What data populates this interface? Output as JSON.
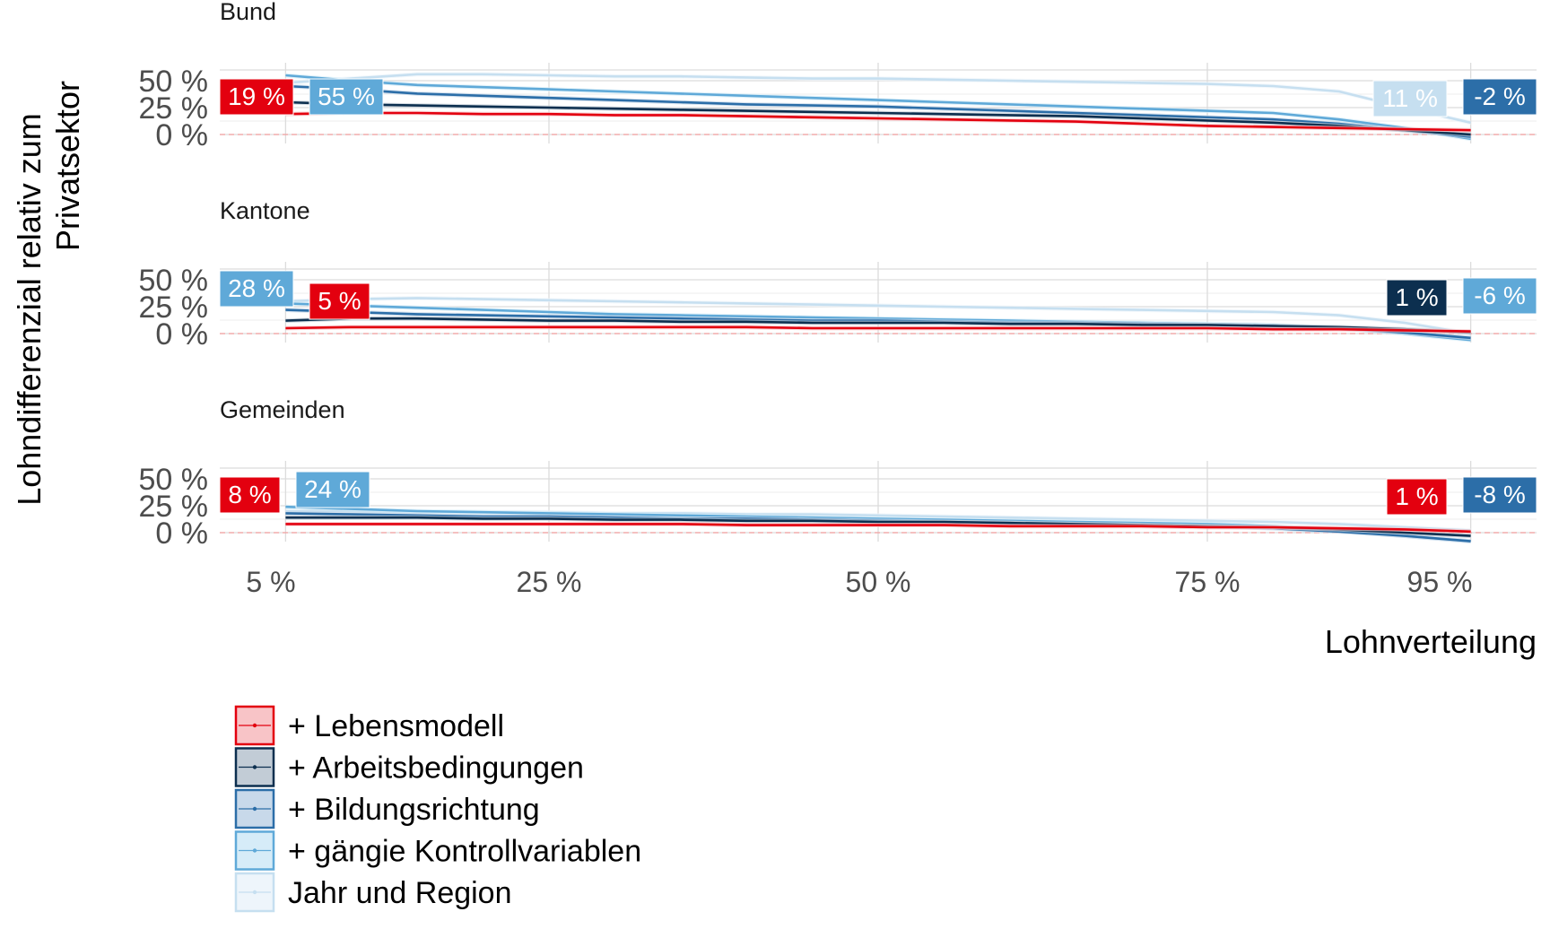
{
  "chart_data": {
    "type": "line",
    "ylabel": "Lohndifferenzial relativ zum Privatsektor",
    "xlabel": "Lohnverteilung",
    "x_ticks": [
      5,
      25,
      50,
      75,
      95
    ],
    "x_tick_labels": [
      "5 %",
      "25 %",
      "50 %",
      "75 %",
      "95 %"
    ],
    "y_ticks": [
      0,
      25,
      50
    ],
    "y_tick_labels": [
      "0 %",
      "25 %",
      "50 %"
    ],
    "ylim": [
      0,
      60
    ],
    "grid": true,
    "legend_position": "bottom",
    "series_styles": [
      {
        "name": "+ Lebensmodell",
        "color": "#e3000f",
        "fill": "#f8c4c7"
      },
      {
        "name": "+ Arbeitsbedingungen",
        "color": "#0c2f4f",
        "fill": "#c2ccd6"
      },
      {
        "name": "+ Bildungsrichtung",
        "color": "#2c6ea8",
        "fill": "#c8d9ea"
      },
      {
        "name": "+ gängie Kontrollvariablen",
        "color": "#5fa9d8",
        "fill": "#d6ecf8"
      },
      {
        "name": "Jahr und Region",
        "color": "#c6dff0",
        "fill": "#eef5fb"
      }
    ],
    "panels": [
      {
        "title": "Bund",
        "x": [
          5,
          10,
          15,
          20,
          25,
          30,
          35,
          40,
          45,
          50,
          55,
          60,
          65,
          70,
          75,
          80,
          85,
          90,
          95
        ],
        "series": [
          {
            "name": "Jahr und Region",
            "values": [
              48,
              52,
              56,
              56,
              55,
              54,
              54,
              53,
              52,
              52,
              51,
              50,
              49,
              48,
              47,
              45,
              40,
              25,
              11
            ]
          },
          {
            "name": "+ gängie Kontrollvariablen",
            "values": [
              55,
              50,
              46,
              44,
              42,
              40,
              38,
              36,
              34,
              32,
              30,
              28,
              26,
              24,
              22,
              20,
              14,
              6,
              -4
            ]
          },
          {
            "name": "+ Bildungsrichtung",
            "values": [
              45,
              42,
              38,
              36,
              34,
              32,
              30,
              28,
              27,
              26,
              24,
              22,
              20,
              18,
              16,
              14,
              10,
              4,
              -2
            ]
          },
          {
            "name": "+ Arbeitsbedingungen",
            "values": [
              30,
              28,
              27,
              26,
              25,
              24,
              23,
              22,
              21,
              20,
              19,
              18,
              17,
              15,
              13,
              11,
              8,
              4,
              0
            ]
          },
          {
            "name": "+ Lebensmodell",
            "values": [
              19,
              20,
              20,
              19,
              19,
              18,
              18,
              17,
              16,
              15,
              14,
              13,
              12,
              10,
              8,
              7,
              6,
              5,
              4
            ]
          }
        ],
        "labels": {
          "left_primary": {
            "text": "19 %",
            "series": "+ Lebensmodell"
          },
          "left_secondary": {
            "text": "55 %",
            "series": "+ gängie Kontrollvariablen"
          },
          "right_primary": {
            "text": "11 %",
            "series": "Jahr und Region"
          },
          "right_secondary": {
            "text": "-2 %",
            "series": "+ Bildungsrichtung"
          }
        }
      },
      {
        "title": "Kantone",
        "x": [
          5,
          10,
          15,
          20,
          25,
          30,
          35,
          40,
          45,
          50,
          55,
          60,
          65,
          70,
          75,
          80,
          85,
          90,
          95
        ],
        "series": [
          {
            "name": "Jahr und Region",
            "values": [
              30,
              32,
              33,
              32,
              31,
              30,
              29,
              28,
              27,
              26,
              25,
              24,
              23,
              22,
              21,
              20,
              17,
              10,
              0
            ]
          },
          {
            "name": "+ gängie Kontrollvariablen",
            "values": [
              28,
              26,
              24,
              22,
              20,
              18,
              17,
              16,
              15,
              14,
              13,
              12,
              11,
              10,
              9,
              8,
              5,
              0,
              -6
            ]
          },
          {
            "name": "+ Bildungsrichtung",
            "values": [
              22,
              20,
              18,
              17,
              16,
              15,
              14,
              13,
              12,
              12,
              11,
              10,
              10,
              9,
              8,
              7,
              5,
              1,
              -4
            ]
          },
          {
            "name": "+ Arbeitsbedingungen",
            "values": [
              12,
              14,
              14,
              13,
              12,
              12,
              11,
              11,
              10,
              10,
              10,
              9,
              9,
              8,
              8,
              7,
              6,
              4,
              1
            ]
          },
          {
            "name": "+ Lebensmodell",
            "values": [
              5,
              6,
              6,
              6,
              6,
              6,
              6,
              6,
              5,
              5,
              5,
              5,
              5,
              5,
              5,
              4,
              4,
              3,
              2
            ]
          }
        ],
        "labels": {
          "left_primary": {
            "text": "28 %",
            "series": "+ gängie Kontrollvariablen"
          },
          "left_secondary": {
            "text": "5 %",
            "series": "+ Lebensmodell"
          },
          "right_primary": {
            "text": "1 %",
            "series": "+ Arbeitsbedingungen"
          },
          "right_secondary": {
            "text": "-6 %",
            "series": "+ gängie Kontrollvariablen"
          }
        }
      },
      {
        "title": "Gemeinden",
        "x": [
          5,
          10,
          15,
          20,
          25,
          30,
          35,
          40,
          45,
          50,
          55,
          60,
          65,
          70,
          75,
          80,
          85,
          90,
          95
        ],
        "series": [
          {
            "name": "Jahr und Region",
            "values": [
              20,
              20,
              19,
              19,
              19,
              18,
              18,
              17,
              17,
              16,
              15,
              14,
              13,
              12,
              11,
              10,
              8,
              5,
              2
            ]
          },
          {
            "name": "+ gängie Kontrollvariablen",
            "values": [
              24,
              22,
              20,
              19,
              18,
              17,
              16,
              15,
              14,
              13,
              12,
              11,
              10,
              9,
              8,
              6,
              2,
              -3,
              -8
            ]
          },
          {
            "name": "+ Bildungsrichtung",
            "values": [
              18,
              17,
              16,
              15,
              15,
              14,
              13,
              13,
              12,
              11,
              10,
              9,
              8,
              7,
              6,
              4,
              1,
              -3,
              -8
            ]
          },
          {
            "name": "+ Arbeitsbedingungen",
            "values": [
              14,
              14,
              14,
              13,
              13,
              12,
              12,
              11,
              11,
              10,
              10,
              9,
              8,
              7,
              6,
              5,
              3,
              0,
              -3
            ]
          },
          {
            "name": "+ Lebensmodell",
            "values": [
              8,
              8,
              8,
              8,
              8,
              8,
              8,
              7,
              7,
              7,
              7,
              6,
              6,
              6,
              5,
              5,
              4,
              3,
              1
            ]
          }
        ],
        "labels": {
          "left_primary": {
            "text": "8 %",
            "series": "+ Lebensmodell"
          },
          "left_secondary": {
            "text": "24 %",
            "series": "+ gängie Kontrollvariablen"
          },
          "right_primary": {
            "text": "1 %",
            "series": "+ Lebensmodell"
          },
          "right_secondary": {
            "text": "-8 %",
            "series": "+ Bildungsrichtung"
          }
        }
      }
    ]
  }
}
